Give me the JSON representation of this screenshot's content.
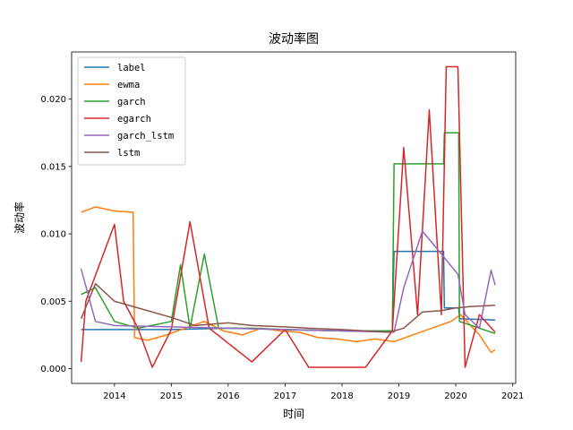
{
  "chart_data": {
    "type": "line",
    "title": "波动率图",
    "xlabel": "时间",
    "ylabel": "波动率",
    "xlim": [
      "2013-04-01",
      "2021-01-20"
    ],
    "ylim": [
      -0.0011,
      0.0235
    ],
    "xticks": [
      "2014",
      "2015",
      "2016",
      "2017",
      "2018",
      "2019",
      "2020",
      "2021"
    ],
    "yticks": [
      "0.000",
      "0.005",
      "0.010",
      "0.015",
      "0.020"
    ],
    "legend_position": "top-left",
    "grid": false,
    "series": [
      {
        "name": "label",
        "color": "#1f77b4",
        "points": [
          [
            "2013-06-01",
            0.0029
          ],
          [
            "2014-01-01",
            0.0029
          ],
          [
            "2015-01-01",
            0.0029
          ],
          [
            "2016-01-01",
            0.003
          ],
          [
            "2017-01-01",
            0.0029
          ],
          [
            "2018-01-01",
            0.0028
          ],
          [
            "2018-11-20",
            0.0028
          ],
          [
            "2018-12-01",
            0.0087
          ],
          [
            "2019-10-15",
            0.0087
          ],
          [
            "2019-10-20",
            0.0045
          ],
          [
            "2020-01-20",
            0.0045
          ],
          [
            "2020-01-25",
            0.0037
          ],
          [
            "2020-09-10",
            0.0036
          ]
        ]
      },
      {
        "name": "ewma",
        "color": "#ff7f0e",
        "points": [
          [
            "2013-06-01",
            0.0116
          ],
          [
            "2013-09-01",
            0.012
          ],
          [
            "2014-01-01",
            0.0117
          ],
          [
            "2014-05-01",
            0.0116
          ],
          [
            "2014-05-10",
            0.0023
          ],
          [
            "2014-08-01",
            0.0021
          ],
          [
            "2014-12-01",
            0.0025
          ],
          [
            "2015-04-01",
            0.003
          ],
          [
            "2015-08-01",
            0.0035
          ],
          [
            "2015-12-01",
            0.0028
          ],
          [
            "2016-04-01",
            0.0025
          ],
          [
            "2016-08-01",
            0.003
          ],
          [
            "2016-12-01",
            0.0028
          ],
          [
            "2017-04-01",
            0.0027
          ],
          [
            "2017-08-01",
            0.0023
          ],
          [
            "2017-12-01",
            0.0022
          ],
          [
            "2018-04-01",
            0.002
          ],
          [
            "2018-08-01",
            0.0022
          ],
          [
            "2018-12-01",
            0.002
          ],
          [
            "2019-04-01",
            0.0025
          ],
          [
            "2019-08-01",
            0.003
          ],
          [
            "2019-12-01",
            0.0035
          ],
          [
            "2020-02-01",
            0.004
          ],
          [
            "2020-06-01",
            0.0025
          ],
          [
            "2020-08-15",
            0.0012
          ],
          [
            "2020-09-10",
            0.0014
          ]
        ]
      },
      {
        "name": "garch",
        "color": "#2ca02c",
        "points": [
          [
            "2013-06-01",
            0.0055
          ],
          [
            "2013-09-01",
            0.006
          ],
          [
            "2014-01-01",
            0.0035
          ],
          [
            "2014-06-01",
            0.003
          ],
          [
            "2015-01-01",
            0.0035
          ],
          [
            "2015-03-01",
            0.0077
          ],
          [
            "2015-05-01",
            0.003
          ],
          [
            "2015-08-01",
            0.0085
          ],
          [
            "2015-11-01",
            0.003
          ],
          [
            "2016-06-01",
            0.003
          ],
          [
            "2017-01-01",
            0.0029
          ],
          [
            "2018-01-01",
            0.0028
          ],
          [
            "2018-11-20",
            0.0028
          ],
          [
            "2018-12-01",
            0.0152
          ],
          [
            "2019-10-15",
            0.0152
          ],
          [
            "2019-10-20",
            0.0175
          ],
          [
            "2020-01-20",
            0.0175
          ],
          [
            "2020-01-25",
            0.0035
          ],
          [
            "2020-09-10",
            0.0026
          ]
        ]
      },
      {
        "name": "egarch",
        "color": "#d62728",
        "points": [
          [
            "2013-06-01",
            0.0005
          ],
          [
            "2013-07-01",
            0.005
          ],
          [
            "2014-01-01",
            0.0107
          ],
          [
            "2014-03-01",
            0.005
          ],
          [
            "2014-06-01",
            0.003
          ],
          [
            "2014-09-01",
            0.0001
          ],
          [
            "2015-01-01",
            0.0029
          ],
          [
            "2015-05-01",
            0.0109
          ],
          [
            "2015-09-01",
            0.003
          ],
          [
            "2016-06-01",
            0.0005
          ],
          [
            "2017-01-01",
            0.0029
          ],
          [
            "2017-06-01",
            0.0001
          ],
          [
            "2018-01-01",
            0.0001
          ],
          [
            "2018-06-01",
            0.0001
          ],
          [
            "2018-11-20",
            0.0028
          ],
          [
            "2019-02-01",
            0.0164
          ],
          [
            "2019-05-01",
            0.004
          ],
          [
            "2019-07-15",
            0.0192
          ],
          [
            "2019-10-01",
            0.004
          ],
          [
            "2019-11-01",
            0.0224
          ],
          [
            "2020-01-15",
            0.0224
          ],
          [
            "2020-03-01",
            0.0001
          ],
          [
            "2020-06-01",
            0.004
          ],
          [
            "2020-09-10",
            0.0027
          ]
        ]
      },
      {
        "name": "garch_lstm",
        "color": "#9467bd",
        "points": [
          [
            "2013-06-01",
            0.0074
          ],
          [
            "2013-09-01",
            0.0035
          ],
          [
            "2014-01-01",
            0.0032
          ],
          [
            "2015-01-01",
            0.0031
          ],
          [
            "2016-01-01",
            0.003
          ],
          [
            "2017-01-01",
            0.0029
          ],
          [
            "2018-01-01",
            0.0028
          ],
          [
            "2018-12-01",
            0.0027
          ],
          [
            "2019-02-01",
            0.006
          ],
          [
            "2019-06-01",
            0.0102
          ],
          [
            "2019-10-01",
            0.0085
          ],
          [
            "2020-01-15",
            0.007
          ],
          [
            "2020-03-01",
            0.004
          ],
          [
            "2020-06-01",
            0.003
          ],
          [
            "2020-08-15",
            0.0073
          ],
          [
            "2020-09-10",
            0.0062
          ]
        ]
      },
      {
        "name": "lstm",
        "color": "#8c564b",
        "points": [
          [
            "2013-06-01",
            0.0037
          ],
          [
            "2013-09-01",
            0.0063
          ],
          [
            "2014-01-01",
            0.005
          ],
          [
            "2014-06-01",
            0.0045
          ],
          [
            "2015-01-01",
            0.0038
          ],
          [
            "2015-06-01",
            0.0032
          ],
          [
            "2016-01-01",
            0.0034
          ],
          [
            "2016-06-01",
            0.0032
          ],
          [
            "2017-01-01",
            0.0031
          ],
          [
            "2017-06-01",
            0.003
          ],
          [
            "2018-01-01",
            0.0029
          ],
          [
            "2018-06-01",
            0.0028
          ],
          [
            "2018-11-01",
            0.0027
          ],
          [
            "2019-02-01",
            0.003
          ],
          [
            "2019-06-01",
            0.0042
          ],
          [
            "2019-10-01",
            0.0043
          ],
          [
            "2020-01-01",
            0.0045
          ],
          [
            "2020-04-01",
            0.0046
          ],
          [
            "2020-09-10",
            0.0047
          ]
        ]
      }
    ]
  }
}
